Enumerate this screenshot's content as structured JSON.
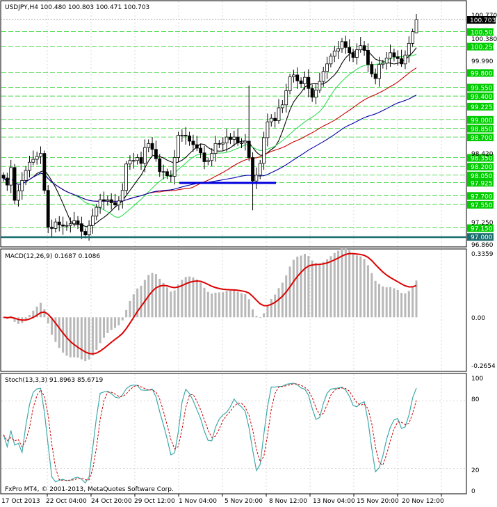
{
  "header": {
    "main_title": "USDJPY,H4  100.480 100.803 100.471 100.703",
    "macd_title": "MACD(12,26,9) 0.1687 0.1086",
    "stoch_title": "Stoch(13,3,3) 91.8963 85.6719",
    "copyright": "FxPro MT4, © 2001-2013, MetaQuotes Software Corp."
  },
  "colors": {
    "background": "#ffffff",
    "grid": "#c8c8c8",
    "candle": "#000000",
    "level_line": "#00cc00",
    "ma_black": "#000000",
    "ma_green": "#33dd55",
    "ma_red": "#cc0000",
    "ma_blue": "#0000aa",
    "support": "#0000dd",
    "floor": "#1a6e6e",
    "macd_hist": "#b8b8b8",
    "macd_signal": "#dd0000",
    "stoch_main": "#3fa9a9",
    "stoch_signal": "#cc0000",
    "label_green_bg": "#00cc00",
    "label_black_bg": "#000000",
    "label_floor_bg": "#1a6e6e"
  },
  "chart_data": [
    {
      "type": "candlestick",
      "title": "USDJPY,H4",
      "symbol": "USDJPY",
      "timeframe": "H4",
      "last": {
        "open": 100.48,
        "high": 100.803,
        "low": 100.471,
        "close": 100.703
      },
      "ylim": [
        96.86,
        100.803
      ],
      "axis_ticks": [
        "100.380",
        "99.990",
        "98.420",
        "97.250",
        "96.860"
      ],
      "current_price_label": "100.703",
      "top_tick": "100.770",
      "levels": [
        "100.500",
        "100.250",
        "99.800",
        "99.550",
        "99.400",
        "99.225",
        "99.000",
        "98.850",
        "98.700",
        "98.350",
        "98.200",
        "98.050",
        "97.925",
        "97.700",
        "97.550",
        "97.150",
        "97.000"
      ],
      "closes": [
        98.0,
        97.88,
        98.18,
        97.62,
        97.78,
        97.96,
        98.13,
        98.27,
        98.32,
        98.37,
        98.42,
        97.79,
        97.16,
        97.14,
        97.25,
        97.2,
        97.18,
        97.19,
        97.22,
        97.27,
        97.22,
        97.09,
        97.03,
        97.19,
        97.35,
        97.5,
        97.63,
        97.61,
        97.63,
        97.58,
        97.54,
        97.61,
        97.79,
        98.24,
        98.3,
        98.3,
        98.35,
        98.25,
        98.52,
        98.59,
        98.49,
        98.33,
        98.11,
        98.11,
        98.04,
        98.03,
        98.35,
        98.73,
        98.73,
        98.72,
        98.63,
        98.57,
        98.51,
        98.43,
        98.28,
        98.3,
        98.42,
        98.59,
        98.58,
        98.6,
        98.7,
        98.66,
        98.7,
        98.6,
        98.6,
        98.63,
        98.35,
        97.95,
        98.05,
        98.25,
        98.69,
        98.96,
        99.02,
        98.98,
        99.2,
        99.25,
        99.49,
        99.73,
        99.76,
        99.66,
        99.61,
        99.72,
        99.53,
        99.38,
        99.5,
        99.65,
        99.82,
        99.95,
        100.08,
        100.17,
        100.21,
        100.33,
        100.23,
        100.14,
        100.06,
        100.19,
        100.26,
        100.18,
        99.94,
        99.78,
        99.7,
        99.94,
        99.96,
        100.05,
        100.14,
        100.07,
        100.04,
        99.95,
        100.1,
        100.3,
        100.5,
        100.703
      ]
    },
    {
      "type": "macd",
      "title": "MACD(12,26,9)",
      "params": [
        12,
        26,
        9
      ],
      "last_main": 0.1687,
      "last_signal": 0.1086,
      "ylim": [
        -0.2654,
        0.3359
      ],
      "axis_ticks": [
        "0.3359",
        "0.00",
        "-0.2654"
      ]
    },
    {
      "type": "stochastic",
      "title": "Stoch(13,3,3)",
      "params": [
        13,
        3,
        3
      ],
      "last_main": 91.8963,
      "last_signal": 85.6719,
      "ylim": [
        0,
        100
      ],
      "axis_ticks": [
        "100",
        "80",
        "20",
        "0"
      ]
    }
  ],
  "x_axis": {
    "labels": [
      "17 Oct 2013",
      "22 Oct 04:00",
      "24 Oct 20:00",
      "29 Oct 12:00",
      "1 Nov 04:00",
      "5 Nov 20:00",
      "8 Nov 12:00",
      "13 Nov 04:00",
      "15 Nov 20:00",
      "20 Nov 12:00"
    ]
  }
}
